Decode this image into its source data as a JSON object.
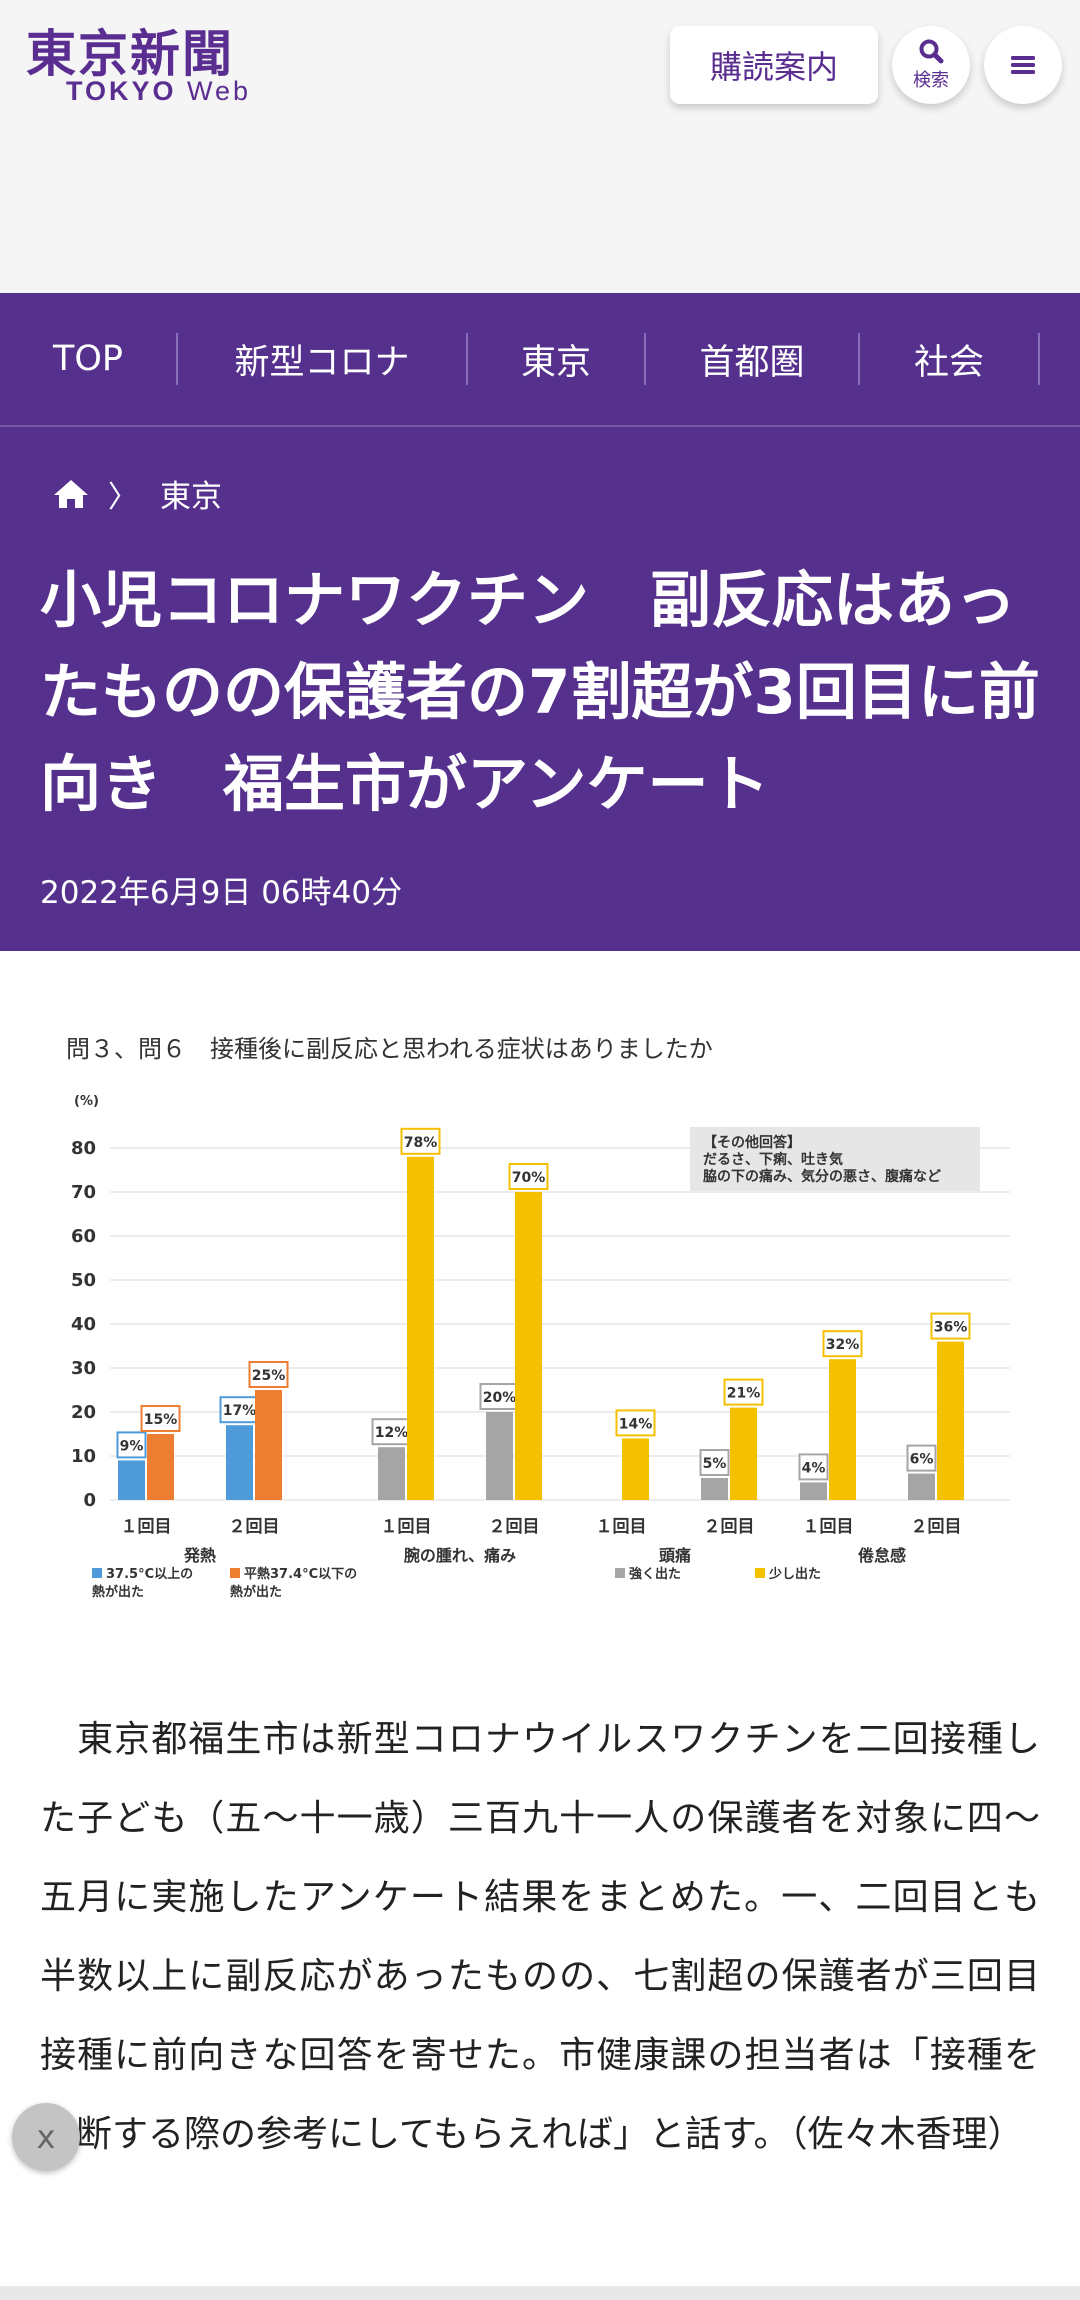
{
  "header": {
    "logo_jp": "東京新聞",
    "logo_en_bold": "TOKYO",
    "logo_en_light": "Web",
    "subscribe_label": "購読案内",
    "search_label": "検索",
    "icons": {
      "search": "search-icon",
      "menu": "hamburger-menu-icon"
    }
  },
  "nav": {
    "items": [
      {
        "label": "TOP"
      },
      {
        "label": "新型コロナ"
      },
      {
        "label": "東京"
      },
      {
        "label": "首都圏"
      },
      {
        "label": "社会"
      }
    ]
  },
  "article": {
    "breadcrumb": {
      "current": "東京"
    },
    "headline": "小児コロナワクチン　副反応はあったものの保護者の7割超が3回目に前向き　福生市がアンケート",
    "date": "2022年6月9日 06時40分",
    "body": "　東京都福生市は新型コロナウイルスワクチンを二回接種した子ども（五〜十一歳）三百九十一人の保護者を対象に四〜五月に実施したアンケート結果をまとめた。一、二回目とも半数以上に副反応があったものの、七割超の保護者が三回目接種に前向きな回答を寄せた。市健康課の担当者は「接種を判断する際の参考にしてもらえれば」と話す。（佐々木香理）",
    "close_label": "x"
  },
  "chart_data": {
    "type": "bar",
    "title": "問３、問６　接種後に副反応と思われる症状はありましたか",
    "ylabel": "(%)",
    "ylim": [
      0,
      80
    ],
    "yticks": [
      0,
      10,
      20,
      30,
      40,
      50,
      60,
      70,
      80
    ],
    "grid": true,
    "annotation": [
      "【その他回答】",
      "だるさ、下痢、吐き気",
      "脇の下の痛み、気分の悪さ、腹痛など"
    ],
    "groups": [
      {
        "name": "発熱",
        "categories": [
          "１回目",
          "２回目"
        ],
        "series": [
          {
            "name": "37.5°C以上の熱が出た",
            "color": "#4f9bd9",
            "values": [
              9,
              17
            ]
          },
          {
            "name": "平熱37.4°C以下の熱が出た",
            "color": "#ed7d31",
            "values": [
              15,
              25
            ]
          }
        ]
      },
      {
        "name": "腕の腫れ、痛み",
        "categories": [
          "１回目",
          "２回目"
        ],
        "series": [
          {
            "name": "強く出た",
            "color": "#a5a5a5",
            "values": [
              12,
              20
            ]
          },
          {
            "name": "少し出た",
            "color": "#f5c000",
            "values": [
              78,
              70
            ]
          }
        ]
      },
      {
        "name": "頭痛",
        "categories": [
          "１回目",
          "２回目"
        ],
        "series": [
          {
            "name": "強く出た",
            "color": "#a5a5a5",
            "values": [
              null,
              5
            ]
          },
          {
            "name": "少し出た",
            "color": "#f5c000",
            "values": [
              14,
              21
            ]
          }
        ]
      },
      {
        "name": "倦怠感",
        "categories": [
          "１回目",
          "２回目"
        ],
        "series": [
          {
            "name": "強く出た",
            "color": "#a5a5a5",
            "values": [
              4,
              6
            ]
          },
          {
            "name": "少し出た",
            "color": "#f5c000",
            "values": [
              32,
              36
            ]
          }
        ]
      }
    ],
    "legend": [
      {
        "label": "37.5°C以上の熱が出た",
        "color": "#4f9bd9"
      },
      {
        "label": "平熱37.4°C以下の熱が出た",
        "color": "#ed7d31"
      },
      {
        "label": "強く出た",
        "color": "#a5a5a5"
      },
      {
        "label": "少し出た",
        "color": "#f5c000"
      }
    ]
  }
}
